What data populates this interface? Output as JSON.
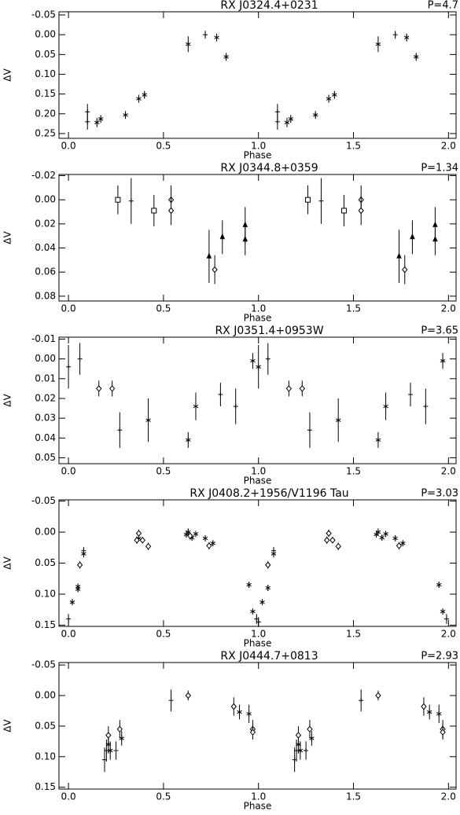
{
  "chart_data": [
    {
      "type": "scatter",
      "title": "RX J0324.4+0231",
      "annotation": "P=4.7",
      "xlabel": "Phase",
      "ylabel": "ΔV",
      "xlim": [
        -0.05,
        2.04
      ],
      "ylim": [
        -0.058,
        0.262
      ],
      "y_inverted": true,
      "xticks": [
        {
          "value": 0,
          "label": "0.0"
        },
        0.5,
        {
          "value": 1,
          "label": "1.0"
        },
        1.5,
        {
          "value": 2,
          "label": "2.0"
        }
      ],
      "yticks": [
        -0.05,
        {
          "value": 0,
          "label": "0.00"
        },
        0.05,
        {
          "value": 0.1,
          "label": "0.10"
        },
        0.15,
        {
          "value": 0.2,
          "label": "0.20"
        },
        0.25
      ],
      "series": [
        {
          "marker": "plus",
          "color": "#000000",
          "x": [
            0.1,
            0.1,
            0.72,
            1.1,
            1.1,
            1.72
          ],
          "values": [
            0.195,
            0.22,
            0.0,
            0.195,
            0.22,
            0.0
          ],
          "errors": [
            0.02,
            0.02,
            0.01,
            0.02,
            0.02,
            0.01
          ]
        },
        {
          "marker": "asterisk",
          "color": "#000000",
          "x": [
            0.15,
            0.17,
            0.3,
            0.37,
            0.4,
            0.63,
            0.78,
            0.83,
            1.15,
            1.17,
            1.3,
            1.37,
            1.4,
            1.63,
            1.78,
            1.83
          ],
          "values": [
            0.222,
            0.213,
            0.203,
            0.162,
            0.152,
            0.024,
            0.007,
            0.056,
            0.222,
            0.213,
            0.203,
            0.162,
            0.152,
            0.024,
            0.007,
            0.056
          ],
          "errors": [
            0.012,
            0.01,
            0.01,
            0.01,
            0.01,
            0.02,
            0.01,
            0.01,
            0.012,
            0.01,
            0.01,
            0.01,
            0.01,
            0.02,
            0.01,
            0.01
          ]
        }
      ]
    },
    {
      "type": "scatter",
      "title": "RX J0344.8+0359",
      "annotation": "P=1.34",
      "xlabel": "Phase",
      "ylabel": "ΔV",
      "xlim": [
        -0.05,
        2.04
      ],
      "ylim": [
        -0.021,
        0.084
      ],
      "y_inverted": true,
      "xticks": [
        {
          "value": 0,
          "label": "0.0"
        },
        0.5,
        {
          "value": 1,
          "label": "1.0"
        },
        1.5,
        {
          "value": 2,
          "label": "2.0"
        }
      ],
      "yticks": [
        -0.02,
        {
          "value": 0,
          "label": "0.00"
        },
        0.02,
        0.04,
        0.06,
        0.08
      ],
      "series": [
        {
          "marker": "square",
          "color": "#000000",
          "x": [
            0.26,
            0.45,
            1.26,
            1.45
          ],
          "values": [
            0.0,
            0.009,
            0.0,
            0.009
          ],
          "errors": [
            0.012,
            0.013,
            0.012,
            0.013
          ]
        },
        {
          "marker": "plus",
          "color": "#000000",
          "x": [
            0.33,
            1.33
          ],
          "values": [
            0.001,
            0.001
          ],
          "errors": [
            0.019,
            0.019
          ]
        },
        {
          "marker": "diamond",
          "color": "#000000",
          "x": [
            0.54,
            0.54,
            0.77,
            1.54,
            1.54,
            1.77
          ],
          "values": [
            0.0,
            0.009,
            0.058,
            0.0,
            0.009,
            0.058
          ],
          "errors": [
            0.012,
            0.012,
            0.012,
            0.012,
            0.012,
            0.012
          ]
        },
        {
          "marker": "triangle",
          "color": "#000000",
          "x": [
            0.74,
            0.81,
            0.93,
            0.93,
            1.74,
            1.81,
            1.93,
            1.93
          ],
          "values": [
            0.047,
            0.031,
            0.021,
            0.033,
            0.047,
            0.031,
            0.021,
            0.033
          ],
          "errors": [
            0.022,
            0.014,
            0.015,
            0.013,
            0.022,
            0.014,
            0.015,
            0.013
          ]
        }
      ]
    },
    {
      "type": "scatter",
      "title": "RX J0351.4+0953W",
      "annotation": "P=3.65",
      "xlabel": "Phase",
      "ylabel": "ΔV",
      "xlim": [
        -0.05,
        2.04
      ],
      "ylim": [
        -0.011,
        0.053
      ],
      "y_inverted": true,
      "xticks": [
        {
          "value": 0,
          "label": "0.0"
        },
        0.5,
        {
          "value": 1,
          "label": "1.0"
        },
        1.5,
        {
          "value": 2,
          "label": "2.0"
        }
      ],
      "yticks": [
        -0.01,
        {
          "value": 0,
          "label": "0.00"
        },
        0.01,
        0.02,
        0.03,
        0.04,
        0.05
      ],
      "series": [
        {
          "marker": "plus",
          "color": "#000000",
          "x": [
            0.0,
            0.06,
            0.27,
            0.8,
            0.88,
            1.05,
            1.27,
            1.8,
            1.88
          ],
          "values": [
            0.004,
            0.0,
            0.036,
            0.018,
            0.024,
            0.0,
            0.036,
            0.018,
            0.024
          ],
          "errors": [
            0.011,
            0.008,
            0.009,
            0.006,
            0.009,
            0.008,
            0.009,
            0.006,
            0.009
          ]
        },
        {
          "marker": "diamond",
          "color": "#000000",
          "x": [
            0.16,
            0.23,
            1.16,
            1.23
          ],
          "values": [
            0.015,
            0.015,
            0.015,
            0.015
          ],
          "errors": [
            0.004,
            0.004,
            0.004,
            0.004
          ]
        },
        {
          "marker": "asterisk",
          "color": "#000000",
          "x": [
            0.42,
            0.63,
            0.67,
            0.97,
            1.0,
            1.42,
            1.63,
            1.67,
            1.97
          ],
          "values": [
            0.031,
            0.041,
            0.024,
            0.001,
            0.004,
            0.031,
            0.041,
            0.024,
            0.001
          ],
          "errors": [
            0.011,
            0.004,
            0.007,
            0.004,
            0.011,
            0.011,
            0.004,
            0.007,
            0.004
          ]
        }
      ]
    },
    {
      "type": "scatter",
      "title": "RX J0408.2+1956/V1196 Tau",
      "annotation": "P=3.03",
      "xlabel": "Phase",
      "ylabel": "ΔV",
      "xlim": [
        -0.05,
        2.04
      ],
      "ylim": [
        -0.052,
        0.152
      ],
      "y_inverted": true,
      "xticks": [
        {
          "value": 0,
          "label": "0.0"
        },
        0.5,
        {
          "value": 1,
          "label": "1.0"
        },
        1.5,
        {
          "value": 2,
          "label": "2.0"
        }
      ],
      "yticks": [
        -0.05,
        {
          "value": 0,
          "label": "0.00"
        },
        0.05,
        {
          "value": 0.1,
          "label": "0.10"
        },
        0.15
      ],
      "series": [
        {
          "marker": "plus",
          "color": "#000000",
          "x": [
            0.0,
            0.08,
            0.99,
            1.0,
            1.08,
            1.99
          ],
          "values": [
            0.14,
            0.03,
            0.14,
            0.145,
            0.03,
            0.14
          ],
          "errors": [
            0.008,
            0.006,
            0.008,
            0.008,
            0.006,
            0.008
          ]
        },
        {
          "marker": "asterisk",
          "color": "#000000",
          "x": [
            0.02,
            0.05,
            0.05,
            0.08,
            0.37,
            0.62,
            0.63,
            0.65,
            0.67,
            0.72,
            0.76,
            0.95,
            0.97,
            1.02,
            1.05,
            1.08,
            1.62,
            1.63,
            1.65,
            1.67,
            1.72,
            1.76,
            1.95,
            1.97
          ],
          "values": [
            0.113,
            0.088,
            0.092,
            0.035,
            0.01,
            0.004,
            0.0,
            0.009,
            0.003,
            0.01,
            0.018,
            0.085,
            0.128,
            0.113,
            0.09,
            0.035,
            0.004,
            0.0,
            0.009,
            0.003,
            0.01,
            0.018,
            0.085,
            0.128
          ],
          "errors": [
            0.005,
            0.005,
            0.005,
            0.006,
            0.005,
            0.005,
            0.006,
            0.005,
            0.005,
            0.005,
            0.005,
            0.005,
            0.005,
            0.005,
            0.005,
            0.006,
            0.005,
            0.006,
            0.005,
            0.005,
            0.005,
            0.005,
            0.005,
            0.005
          ]
        },
        {
          "marker": "diamond",
          "color": "#000000",
          "x": [
            0.06,
            0.36,
            0.37,
            0.39,
            0.42,
            0.64,
            0.74,
            1.05,
            1.36,
            1.37,
            1.39,
            1.42,
            1.74
          ],
          "values": [
            0.053,
            0.013,
            0.002,
            0.013,
            0.023,
            0.006,
            0.022,
            0.053,
            0.013,
            0.002,
            0.013,
            0.023,
            0.022
          ],
          "errors": [
            0.006,
            0.006,
            0.006,
            0.005,
            0.006,
            0.006,
            0.006,
            0.006,
            0.006,
            0.006,
            0.005,
            0.006,
            0.006
          ]
        }
      ]
    },
    {
      "type": "scatter",
      "title": "RX J0444.7+0813",
      "annotation": "P=2.93",
      "xlabel": "Phase",
      "ylabel": "ΔV",
      "xlim": [
        -0.05,
        2.04
      ],
      "ylim": [
        -0.054,
        0.153
      ],
      "y_inverted": true,
      "xticks": [
        {
          "value": 0,
          "label": "0.0"
        },
        0.5,
        {
          "value": 1,
          "label": "1.0"
        },
        1.5,
        {
          "value": 2,
          "label": "2.0"
        }
      ],
      "yticks": [
        -0.05,
        {
          "value": 0,
          "label": "0.00"
        },
        0.05,
        {
          "value": 0.1,
          "label": "0.10"
        },
        0.15
      ],
      "series": [
        {
          "marker": "plus",
          "color": "#000000",
          "x": [
            0.19,
            0.2,
            0.25,
            0.54,
            1.19,
            1.2,
            1.25,
            1.54
          ],
          "values": [
            0.105,
            0.09,
            0.09,
            0.008,
            0.105,
            0.09,
            0.09,
            0.008
          ],
          "errors": [
            0.02,
            0.018,
            0.015,
            0.018,
            0.02,
            0.018,
            0.015,
            0.018
          ]
        },
        {
          "marker": "asterisk",
          "color": "#000000",
          "x": [
            0.21,
            0.22,
            0.28,
            0.9,
            0.95,
            1.21,
            1.22,
            1.28,
            1.9,
            1.95
          ],
          "values": [
            0.08,
            0.09,
            0.07,
            0.027,
            0.03,
            0.08,
            0.09,
            0.07,
            0.027,
            0.03
          ],
          "errors": [
            0.015,
            0.015,
            0.012,
            0.012,
            0.015,
            0.015,
            0.015,
            0.012,
            0.012,
            0.015
          ]
        },
        {
          "marker": "diamond",
          "color": "#000000",
          "x": [
            0.21,
            0.27,
            0.63,
            0.87,
            0.97,
            0.97,
            1.21,
            1.27,
            1.63,
            1.87,
            1.97,
            1.97
          ],
          "values": [
            0.065,
            0.055,
            0.0,
            0.018,
            0.055,
            0.06,
            0.065,
            0.055,
            0.0,
            0.018,
            0.055,
            0.06
          ],
          "errors": [
            0.015,
            0.015,
            0.008,
            0.015,
            0.015,
            0.012,
            0.015,
            0.015,
            0.008,
            0.015,
            0.015,
            0.012
          ]
        }
      ]
    }
  ]
}
